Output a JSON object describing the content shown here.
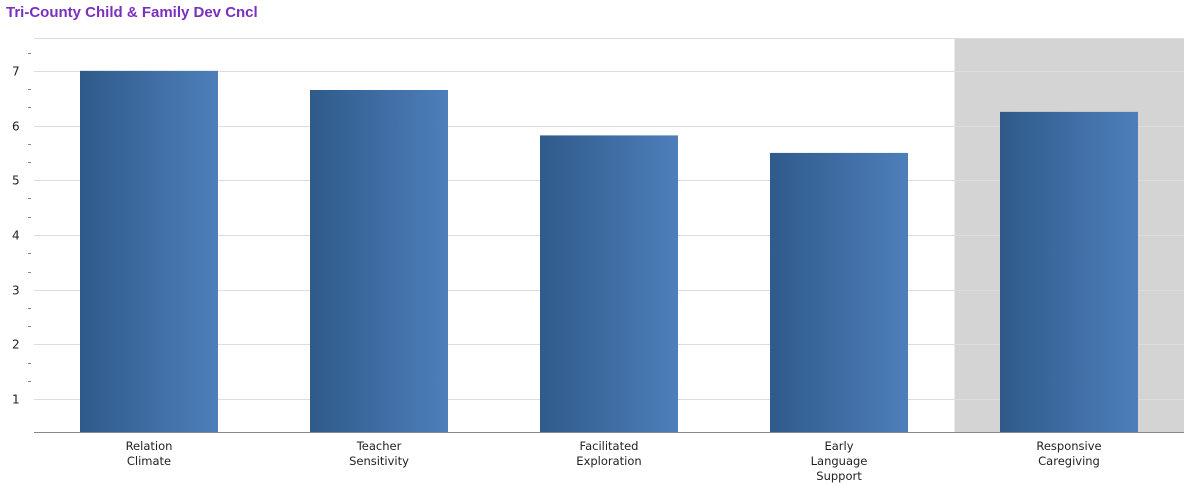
{
  "title": "Tri-County Child & Family Dev Cncl",
  "colors": {
    "title": "#7b2fbe",
    "bar_dark": "#2f5a8a",
    "bar_light": "#4e7fbb",
    "highlight_band": "#d4d4d4",
    "gridline": "#dddddd",
    "axis": "#888888"
  },
  "chart_data": {
    "type": "bar",
    "title": "Tri-County Child & Family Dev Cncl",
    "xlabel": "",
    "ylabel": "",
    "ylim": [
      0.4,
      7.6
    ],
    "yticks": [
      1,
      2,
      3,
      4,
      5,
      6,
      7
    ],
    "grid": true,
    "categories": [
      [
        "Relation",
        "Climate"
      ],
      [
        "Teacher",
        "Sensitivity"
      ],
      [
        "Facilitated",
        "Exploration"
      ],
      [
        "Early",
        "Language",
        "Support"
      ],
      [
        "Responsive",
        "Caregiving"
      ]
    ],
    "values": [
      7.0,
      6.65,
      5.82,
      5.5,
      6.25
    ],
    "highlighted_category_index": 4
  }
}
